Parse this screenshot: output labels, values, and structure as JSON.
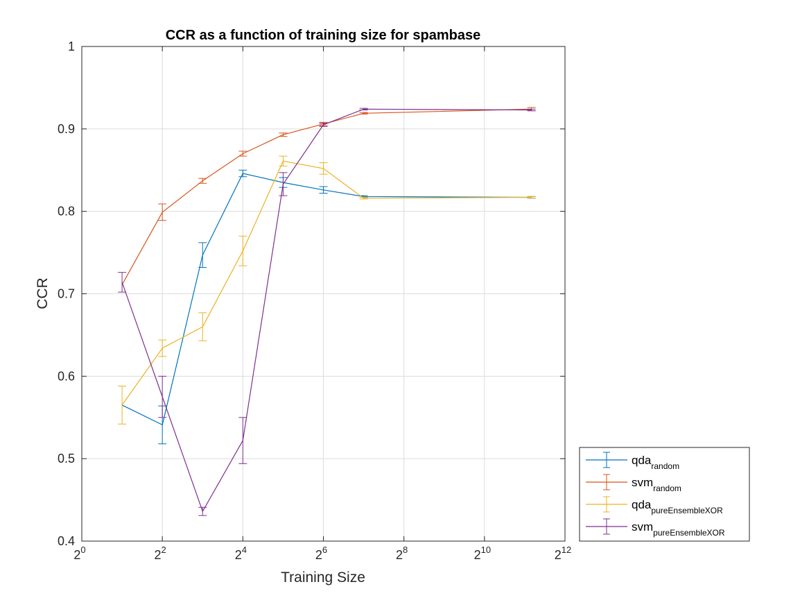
{
  "chart_data": {
    "type": "line",
    "title": "CCR as a function of training size for spambase",
    "xlabel": "Training Size",
    "ylabel": "CCR",
    "x_scale": "log2",
    "xlim_exponent": [
      0,
      12
    ],
    "ylim": [
      0.4,
      1
    ],
    "x_ticks": [
      {
        "base": "2",
        "exp": "0"
      },
      {
        "base": "2",
        "exp": "2"
      },
      {
        "base": "2",
        "exp": "4"
      },
      {
        "base": "2",
        "exp": "6"
      },
      {
        "base": "2",
        "exp": "8"
      },
      {
        "base": "2",
        "exp": "10"
      },
      {
        "base": "2",
        "exp": "12"
      }
    ],
    "y_ticks": [
      "0.4",
      "0.5",
      "0.6",
      "0.7",
      "0.8",
      "0.9",
      "1"
    ],
    "grid": true,
    "legend_position": "bottom-right-outside",
    "x": [
      2,
      4,
      8,
      16,
      32,
      64,
      128,
      2300
    ],
    "series": [
      {
        "name": "qda",
        "subscript": "random",
        "color": "#0072BD",
        "values": [
          0.565,
          0.541,
          0.747,
          0.846,
          0.835,
          0.826,
          0.818,
          0.817
        ],
        "errors": [
          0,
          0.023,
          0.015,
          0.004,
          0.006,
          0.004,
          0.001,
          0.001
        ]
      },
      {
        "name": "svm",
        "subscript": "random",
        "color": "#D95319",
        "values": [
          0.711,
          0.799,
          0.837,
          0.87,
          0.893,
          0.906,
          0.919,
          0.924
        ],
        "errors": [
          0,
          0.01,
          0.003,
          0.003,
          0.002,
          0.002,
          0.001,
          0.002
        ]
      },
      {
        "name": "qda",
        "subscript": "pureEnsembleXOR",
        "color": "#EDB120",
        "values": [
          0.565,
          0.634,
          0.66,
          0.752,
          0.861,
          0.852,
          0.816,
          0.817
        ],
        "errors": [
          0.023,
          0.01,
          0.017,
          0.018,
          0.006,
          0.007,
          0.001,
          0.001
        ]
      },
      {
        "name": "svm",
        "subscript": "pureEnsembleXOR",
        "color": "#7E2F8E",
        "values": [
          0.714,
          0.575,
          0.436,
          0.522,
          0.833,
          0.905,
          0.924,
          0.923
        ],
        "errors": [
          0.012,
          0.025,
          0.005,
          0.028,
          0.014,
          0.002,
          0.001,
          0.001
        ]
      }
    ]
  }
}
